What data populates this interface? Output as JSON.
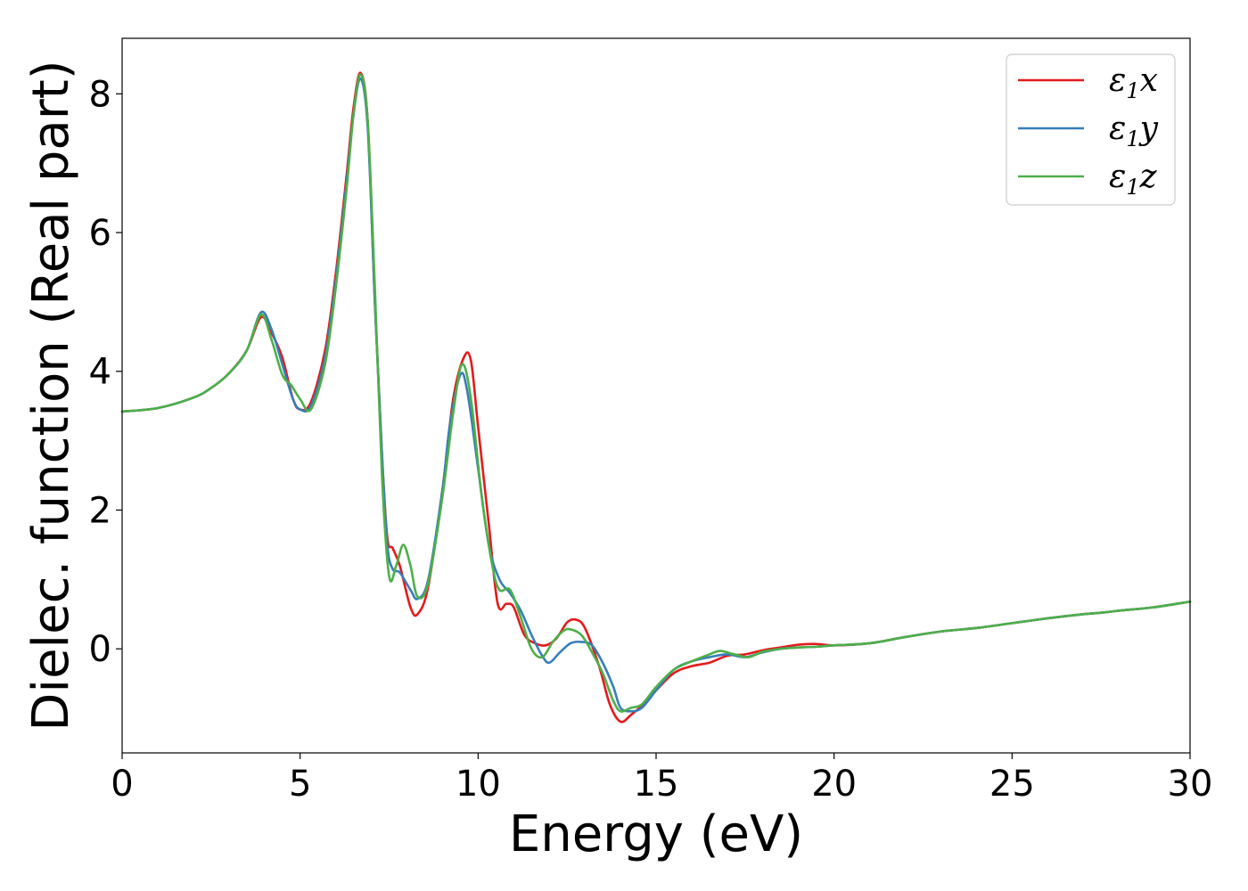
{
  "chart_data": {
    "type": "line",
    "xlabel": "Energy (eV)",
    "ylabel": "Dielec. function (Real part)",
    "xlim": [
      0,
      30
    ],
    "ylim": [
      -1.5,
      8.8
    ],
    "xticks": [
      "0",
      "5",
      "10",
      "15",
      "20",
      "25",
      "30"
    ],
    "yticks": [
      "0",
      "2",
      "4",
      "6",
      "8"
    ],
    "grid": false,
    "legend_position": "top-right",
    "series": [
      {
        "name": "ε1x",
        "legend": {
          "base": "ε",
          "sub": "1",
          "tail": "x"
        },
        "color": "#e41a1c",
        "x": [
          0,
          1,
          2,
          2.5,
          3,
          3.5,
          3.9,
          4.2,
          4.5,
          4.8,
          5.0,
          5.3,
          5.7,
          6.0,
          6.3,
          6.5,
          6.7,
          6.9,
          7.1,
          7.3,
          7.45,
          7.6,
          7.8,
          8.1,
          8.3,
          8.6,
          9.0,
          9.3,
          9.6,
          9.8,
          10.0,
          10.3,
          10.55,
          10.8,
          11.0,
          11.3,
          11.6,
          11.9,
          12.2,
          12.5,
          12.75,
          13.0,
          13.4,
          13.7,
          14.0,
          14.3,
          14.6,
          15.0,
          15.5,
          16.0,
          16.5,
          17.0,
          17.5,
          18.0,
          18.5,
          19.0,
          19.5,
          20.0,
          21.0,
          22.0,
          23.0,
          24.0,
          25.0,
          26.0,
          27.0,
          27.5,
          28.0,
          29.0,
          30.0
        ],
        "y": [
          3.42,
          3.47,
          3.62,
          3.76,
          3.97,
          4.3,
          4.78,
          4.55,
          4.2,
          3.6,
          3.45,
          3.55,
          4.3,
          5.4,
          6.8,
          7.8,
          8.3,
          7.6,
          5.0,
          2.8,
          1.6,
          1.45,
          1.2,
          0.6,
          0.5,
          0.9,
          2.3,
          3.6,
          4.2,
          4.15,
          3.2,
          1.8,
          0.65,
          0.65,
          0.6,
          0.2,
          0.08,
          0.05,
          0.15,
          0.38,
          0.42,
          0.3,
          -0.25,
          -0.8,
          -1.05,
          -0.95,
          -0.82,
          -0.6,
          -0.35,
          -0.25,
          -0.2,
          -0.1,
          -0.08,
          -0.02,
          0.02,
          0.06,
          0.07,
          0.05,
          0.08,
          0.17,
          0.25,
          0.3,
          0.37,
          0.44,
          0.5,
          0.52,
          0.55,
          0.6,
          0.68
        ]
      },
      {
        "name": "ε1y",
        "legend": {
          "base": "ε",
          "sub": "1",
          "tail": "y"
        },
        "color": "#377eb8",
        "x": [
          0,
          1,
          2,
          2.5,
          3,
          3.5,
          3.9,
          4.2,
          4.5,
          4.8,
          5.0,
          5.3,
          5.7,
          6.0,
          6.3,
          6.5,
          6.7,
          6.9,
          7.1,
          7.3,
          7.45,
          7.6,
          7.8,
          8.1,
          8.3,
          8.6,
          9.0,
          9.2,
          9.5,
          9.7,
          10.0,
          10.3,
          10.6,
          10.9,
          11.2,
          11.5,
          11.8,
          12.0,
          12.3,
          12.6,
          12.9,
          13.2,
          13.5,
          13.8,
          14.0,
          14.3,
          14.6,
          15.0,
          15.5,
          16.0,
          16.5,
          17.0,
          17.5,
          18.0,
          18.5,
          19.0,
          19.5,
          20.0,
          21.0,
          22.0,
          23.0,
          24.0,
          25.0,
          26.0,
          27.0,
          27.5,
          28.0,
          29.0,
          30.0
        ],
        "y": [
          3.42,
          3.47,
          3.62,
          3.76,
          3.97,
          4.3,
          4.85,
          4.6,
          4.1,
          3.6,
          3.45,
          3.5,
          4.2,
          5.3,
          6.7,
          7.7,
          8.22,
          7.5,
          5.0,
          2.8,
          1.5,
          1.15,
          1.1,
          0.85,
          0.72,
          1.0,
          2.3,
          3.2,
          3.95,
          3.7,
          2.6,
          1.5,
          1.0,
          0.8,
          0.55,
          0.2,
          -0.1,
          -0.2,
          -0.05,
          0.08,
          0.1,
          0.05,
          -0.2,
          -0.55,
          -0.85,
          -0.9,
          -0.85,
          -0.6,
          -0.3,
          -0.18,
          -0.12,
          -0.08,
          -0.12,
          -0.05,
          0.0,
          0.02,
          0.03,
          0.05,
          0.08,
          0.17,
          0.25,
          0.3,
          0.37,
          0.44,
          0.5,
          0.52,
          0.55,
          0.6,
          0.68
        ]
      },
      {
        "name": "ε1z",
        "legend": {
          "base": "ε",
          "sub": "1",
          "tail": "z"
        },
        "color": "#4daf4a",
        "x": [
          0,
          1,
          2,
          2.5,
          3,
          3.5,
          3.9,
          4.2,
          4.5,
          4.75,
          5.0,
          5.3,
          5.7,
          6.0,
          6.3,
          6.5,
          6.7,
          6.9,
          7.1,
          7.3,
          7.5,
          7.7,
          7.9,
          8.1,
          8.3,
          8.6,
          9.0,
          9.3,
          9.55,
          9.8,
          10.1,
          10.4,
          10.6,
          10.9,
          11.2,
          11.5,
          11.8,
          12.1,
          12.4,
          12.6,
          12.9,
          13.2,
          13.5,
          13.8,
          14.0,
          14.3,
          14.6,
          15.0,
          15.5,
          16.0,
          16.5,
          16.8,
          17.2,
          17.6,
          18.0,
          18.5,
          19.0,
          19.5,
          20.0,
          21.0,
          22.0,
          23.0,
          24.0,
          25.0,
          26.0,
          27.0,
          27.5,
          28.0,
          29.0,
          30.0
        ],
        "y": [
          3.42,
          3.47,
          3.62,
          3.76,
          3.97,
          4.3,
          4.82,
          4.45,
          3.95,
          3.8,
          3.6,
          3.45,
          4.1,
          5.2,
          6.6,
          7.7,
          8.28,
          7.6,
          5.2,
          2.5,
          1.05,
          1.2,
          1.5,
          1.2,
          0.75,
          0.95,
          2.2,
          3.4,
          4.1,
          3.6,
          2.2,
          1.2,
          0.85,
          0.85,
          0.45,
          0.0,
          -0.12,
          0.1,
          0.26,
          0.28,
          0.2,
          -0.05,
          -0.35,
          -0.75,
          -0.9,
          -0.85,
          -0.8,
          -0.55,
          -0.3,
          -0.18,
          -0.08,
          -0.03,
          -0.08,
          -0.12,
          -0.04,
          0.0,
          0.02,
          0.03,
          0.05,
          0.08,
          0.17,
          0.25,
          0.3,
          0.37,
          0.44,
          0.5,
          0.52,
          0.55,
          0.6,
          0.68
        ]
      }
    ]
  }
}
